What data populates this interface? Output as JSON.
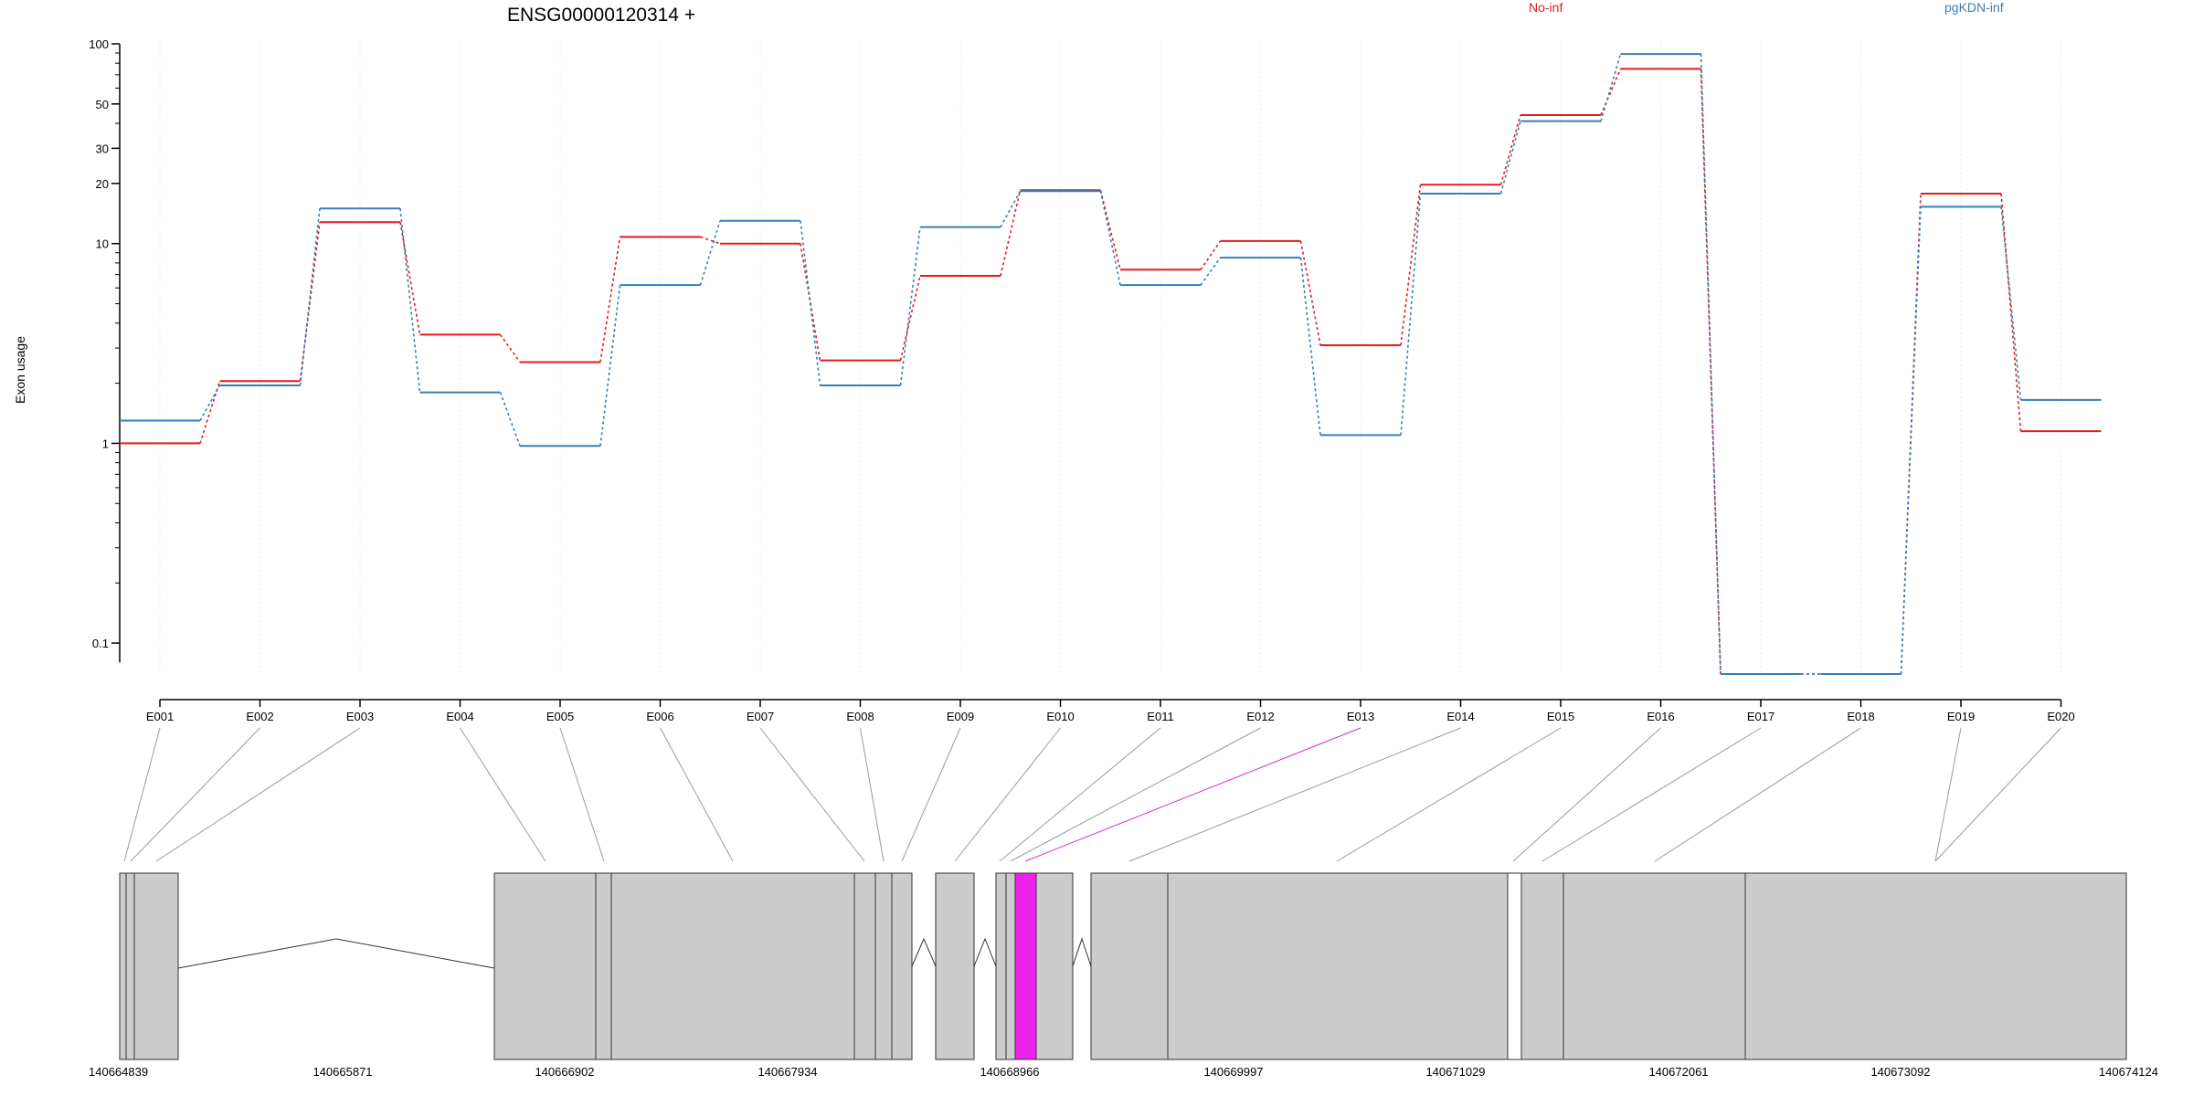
{
  "chart_data": {
    "type": "line",
    "title": "ENSG00000120314 +",
    "xlabel": "",
    "ylabel": "Exon usage",
    "y_scale": "log",
    "ylim": [
      0.07,
      100
    ],
    "y_ticks": [
      0.1,
      1,
      10,
      20,
      30,
      50,
      100
    ],
    "y_tick_labels": [
      "0.1",
      "1",
      "10",
      "20",
      "30",
      "50",
      "100"
    ],
    "grid": "vertical",
    "legend": "top",
    "categories": [
      "E001",
      "E002",
      "E003",
      "E004",
      "E005",
      "E006",
      "E007",
      "E008",
      "E009",
      "E010",
      "E011",
      "E012",
      "E013",
      "E014",
      "E015",
      "E016",
      "E017",
      "E018",
      "E019",
      "E020"
    ],
    "series": [
      {
        "name": "No-inf",
        "color": "#e41a1c",
        "values": [
          1.0,
          2.05,
          12.8,
          3.5,
          2.55,
          10.8,
          10.0,
          2.6,
          6.9,
          18.5,
          7.4,
          10.3,
          3.1,
          19.7,
          44.0,
          75.0,
          0.07,
          0.07,
          17.8,
          1.15
        ]
      },
      {
        "name": "pgKDN-inf",
        "color": "#377eb8",
        "values": [
          1.3,
          1.95,
          15.0,
          1.8,
          0.97,
          6.2,
          13.0,
          1.95,
          12.1,
          18.3,
          6.2,
          8.5,
          1.1,
          17.8,
          41.0,
          89.0,
          0.07,
          0.07,
          15.3,
          1.65
        ]
      }
    ],
    "highlighted_exon": "E013",
    "genomic_axis": {
      "ticks": [
        "140664839",
        "140665871",
        "140666902",
        "140667934",
        "140668966",
        "140669997",
        "140671029",
        "140672061",
        "140673092",
        "140674124"
      ],
      "start": 140664839,
      "end": 140674124
    },
    "colors": {
      "exon_fill": "#cccccc",
      "highlight_fill": "#ee22ee",
      "connector": "#9a9a9a",
      "highlight_connector": "#cc33cc"
    }
  }
}
